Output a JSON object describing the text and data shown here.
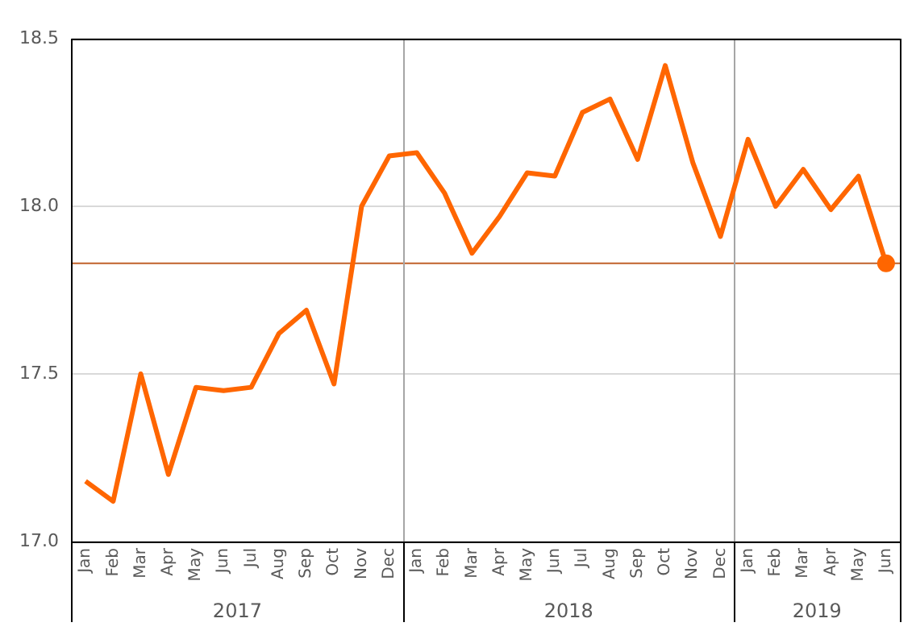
{
  "chart_data": {
    "type": "line",
    "categories": [
      "Jan",
      "Feb",
      "Mar",
      "Apr",
      "May",
      "Jun",
      "Jul",
      "Aug",
      "Sep",
      "Oct",
      "Nov",
      "Dec",
      "Jan",
      "Feb",
      "Mar",
      "Apr",
      "May",
      "Jun",
      "Jul",
      "Aug",
      "Sep",
      "Oct",
      "Nov",
      "Dec",
      "Jan",
      "Feb",
      "Mar",
      "Apr",
      "May",
      "Jun"
    ],
    "annotations": [
      "2017",
      "2018",
      "2019"
    ],
    "series": [
      {
        "color": "#ff6600",
        "marker": "none",
        "values": [
          17.18,
          17.12,
          17.5,
          17.2,
          17.46,
          17.45,
          17.46,
          17.62,
          17.69,
          17.47,
          18.0,
          18.15,
          18.16,
          18.04,
          17.86,
          17.97,
          18.1,
          18.09,
          18.28,
          18.32,
          18.14,
          18.42,
          18.13,
          17.91,
          18.2,
          18.0,
          18.11,
          17.99,
          18.09,
          17.83
        ]
      },
      {
        "type": "scatter",
        "color": "#ff6600",
        "marker": "circle",
        "values": [
          null,
          null,
          null,
          null,
          null,
          null,
          null,
          null,
          null,
          null,
          null,
          null,
          null,
          null,
          null,
          null,
          null,
          null,
          null,
          null,
          null,
          null,
          null,
          null,
          null,
          null,
          null,
          null,
          null,
          17.83
        ]
      }
    ],
    "ylim": [
      17.0,
      18.5
    ],
    "yticks": [
      {
        "value": 17.0,
        "label": "17.0"
      },
      {
        "value": 17.5,
        "label": "17.5"
      },
      {
        "value": 18.0,
        "label": "18.0"
      },
      {
        "value": 18.5,
        "label": "18.5"
      }
    ],
    "ref_lines": [
      {
        "axis": "y",
        "value": 17.83,
        "color": "#c0612a"
      }
    ],
    "grid": "y",
    "legend": false
  }
}
